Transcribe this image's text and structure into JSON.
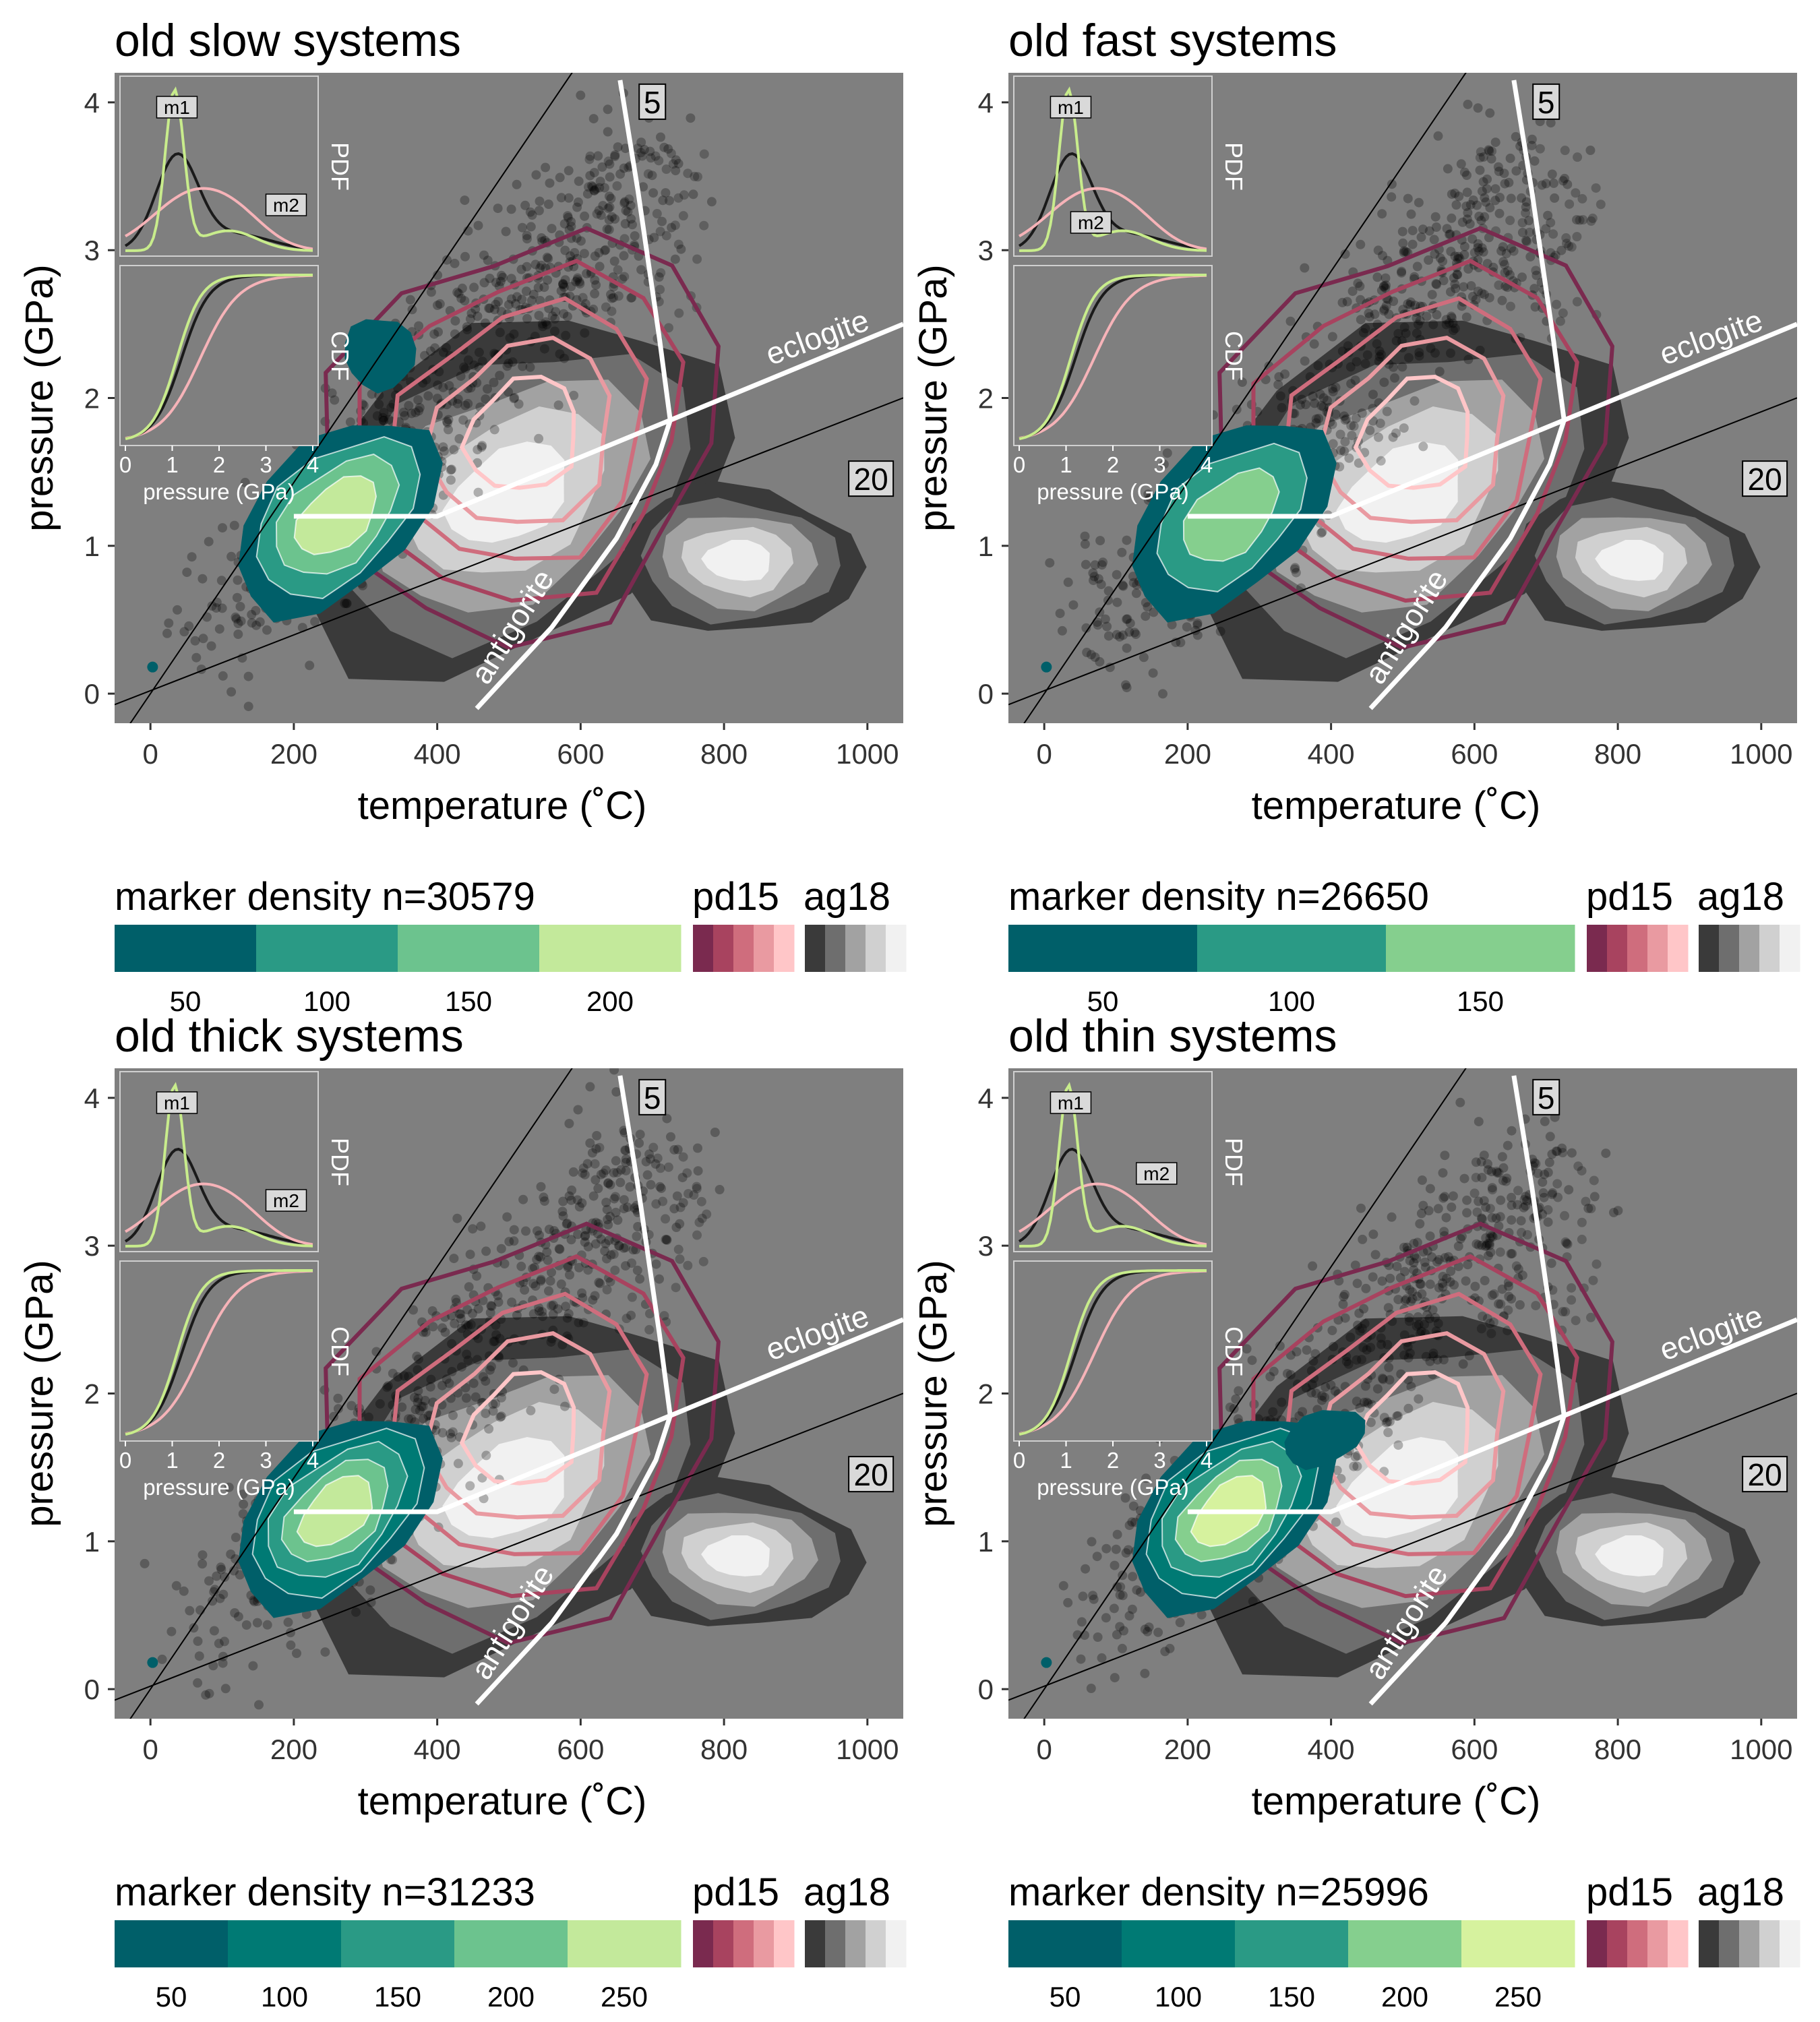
{
  "figure": {
    "axis_titles": {
      "x": "temperature (˚C)",
      "y": "pressure (GPa)"
    },
    "boundary_labels": {
      "eclogite": "eclogite",
      "antigorite": "antigorite"
    },
    "gradient_labels": [
      "5",
      "20"
    ],
    "inset_labels": {
      "pdf": "PDF",
      "cdf": "CDF",
      "xaxis": "pressure (GPa)"
    },
    "legend_titles": {
      "pd15": "pd15",
      "ag18": "ag18"
    },
    "colors": {
      "panel_background": "#7f7f7f",
      "markers": "#000000",
      "boundaries": "#ffffff",
      "pd15_ramp": [
        "#7a2a4f",
        "#a8435f",
        "#cf6d7d",
        "#e99aa1",
        "#ffc6c8"
      ],
      "ag18_ramp": [
        "#3a3a3a",
        "#6e6e6e",
        "#a2a2a2",
        "#d0d0d0",
        "#f1f1f1"
      ],
      "inset_lines": {
        "black": "#1a1a1a",
        "green": "#c8ec8c",
        "pink": "#f6b3b8"
      }
    }
  },
  "chart_data": [
    {
      "type": "scatter",
      "title": "old slow systems",
      "xlabel": "temperature (˚C)",
      "ylabel": "pressure (GPa)",
      "xlim": [
        -50,
        1050
      ],
      "ylim": [
        -0.2,
        4.2
      ],
      "xticks": [
        0,
        200,
        400,
        600,
        800,
        1000
      ],
      "yticks": [
        0,
        1,
        2,
        3,
        4
      ],
      "inset": {
        "xticks": [
          0,
          1,
          2,
          3,
          4
        ],
        "peaks": [
          {
            "label": "m1",
            "pressure": 1.1
          },
          {
            "label": "m2",
            "pressure": 3.0
          }
        ]
      },
      "legend": {
        "title": "marker density n=30579",
        "n": 30579,
        "breaks": [
          50,
          100,
          150,
          200
        ],
        "colors": [
          "#005f69",
          "#2a9a85",
          "#6cc38e",
          "#c3e99b"
        ]
      }
    },
    {
      "type": "scatter",
      "title": "old fast systems",
      "xlabel": "temperature (˚C)",
      "ylabel": "pressure (GPa)",
      "xlim": [
        -50,
        1050
      ],
      "ylim": [
        -0.2,
        4.2
      ],
      "xticks": [
        0,
        200,
        400,
        600,
        800,
        1000
      ],
      "yticks": [
        0,
        1,
        2,
        3,
        4
      ],
      "inset": {
        "xticks": [
          0,
          1,
          2,
          3,
          4
        ],
        "peaks": [
          {
            "label": "m1",
            "pressure": 1.1
          },
          {
            "label": "m2",
            "pressure": 1.1
          }
        ]
      },
      "legend": {
        "title": "marker density n=26650",
        "n": 26650,
        "breaks": [
          50,
          100,
          150
        ],
        "colors": [
          "#005f69",
          "#2a9a85",
          "#85cf8e"
        ]
      }
    },
    {
      "type": "scatter",
      "title": "old thick systems",
      "xlabel": "temperature (˚C)",
      "ylabel": "pressure (GPa)",
      "xlim": [
        -50,
        1050
      ],
      "ylim": [
        -0.2,
        4.2
      ],
      "xticks": [
        0,
        200,
        400,
        600,
        800,
        1000
      ],
      "yticks": [
        0,
        1,
        2,
        3,
        4
      ],
      "inset": {
        "xticks": [
          0,
          1,
          2,
          3,
          4
        ],
        "peaks": [
          {
            "label": "m1",
            "pressure": 1.1
          },
          {
            "label": "m2",
            "pressure": 3.0
          }
        ]
      },
      "legend": {
        "title": "marker density n=31233",
        "n": 31233,
        "breaks": [
          50,
          100,
          150,
          200,
          250
        ],
        "colors": [
          "#005f69",
          "#007a74",
          "#2a9a85",
          "#6cc38e",
          "#c3e99b"
        ]
      }
    },
    {
      "type": "scatter",
      "title": "old thin systems",
      "xlabel": "temperature (˚C)",
      "ylabel": "pressure (GPa)",
      "xlim": [
        -50,
        1050
      ],
      "ylim": [
        -0.2,
        4.2
      ],
      "xticks": [
        0,
        200,
        400,
        600,
        800,
        1000
      ],
      "yticks": [
        0,
        1,
        2,
        3,
        4
      ],
      "inset": {
        "xticks": [
          0,
          1,
          2,
          3,
          4
        ],
        "peaks": [
          {
            "label": "m1",
            "pressure": 1.1
          },
          {
            "label": "m2",
            "pressure": 2.5
          }
        ]
      },
      "legend": {
        "title": "marker density n=25996",
        "n": 25996,
        "breaks": [
          50,
          100,
          150,
          200,
          250
        ],
        "colors": [
          "#005f69",
          "#007a74",
          "#2a9a85",
          "#85cf8e",
          "#d6f29e"
        ]
      }
    }
  ]
}
